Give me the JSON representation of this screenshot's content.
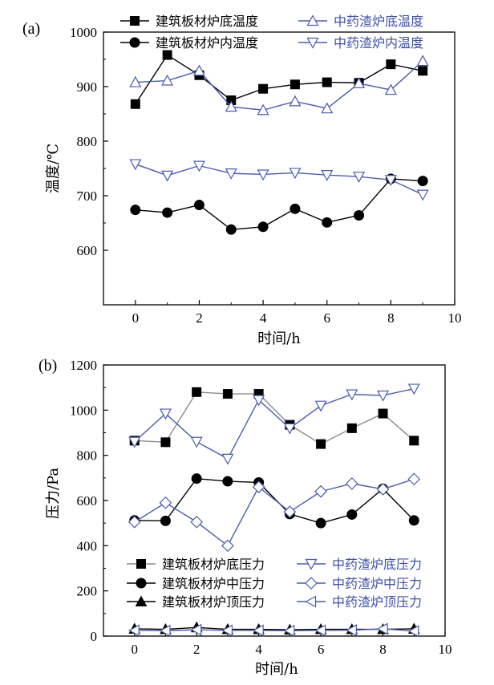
{
  "chart_data": [
    {
      "type": "line",
      "panel_label": "(a)",
      "xlabel": "时间/h",
      "ylabel": "温度/℃",
      "xlim": [
        -1,
        10
      ],
      "ylim": [
        500,
        1000
      ],
      "xticks": [
        0,
        2,
        4,
        6,
        8,
        10
      ],
      "yticks": [
        600,
        700,
        800,
        900,
        1000
      ],
      "legend_position": "top",
      "series": [
        {
          "name": "建筑板材炉底温度",
          "color": "#000000",
          "marker": "square-filled",
          "x": [
            0,
            1,
            2,
            3,
            4,
            5,
            6,
            7,
            8,
            9
          ],
          "y": [
            868,
            958,
            921,
            875,
            896,
            904,
            908,
            907,
            941,
            929
          ]
        },
        {
          "name": "建筑板材炉内温度",
          "color": "#000000",
          "marker": "circle-filled",
          "x": [
            0,
            1,
            2,
            3,
            4,
            5,
            6,
            7,
            8,
            9
          ],
          "y": [
            674,
            669,
            683,
            638,
            643,
            676,
            651,
            664,
            731,
            727
          ]
        },
        {
          "name": "中药渣炉底温度",
          "color": "#4a5cb0",
          "marker": "triangle-up-open",
          "x": [
            0,
            1,
            2,
            3,
            4,
            5,
            6,
            7,
            8,
            9
          ],
          "y": [
            908,
            911,
            929,
            863,
            857,
            873,
            860,
            906,
            894,
            947
          ]
        },
        {
          "name": "中药渣炉内温度",
          "color": "#4a5cb0",
          "marker": "triangle-down-open",
          "x": [
            0,
            1,
            2,
            3,
            4,
            5,
            6,
            7,
            8,
            9
          ],
          "y": [
            758,
            737,
            755,
            741,
            739,
            742,
            738,
            735,
            729,
            702
          ]
        }
      ]
    },
    {
      "type": "line",
      "panel_label": "(b)",
      "xlabel": "时间/h",
      "ylabel": "压力/Pa",
      "xlim": [
        -1,
        10
      ],
      "ylim": [
        0,
        1200
      ],
      "xticks": [
        0,
        2,
        4,
        6,
        8,
        10
      ],
      "yticks": [
        0,
        200,
        400,
        600,
        800,
        1000,
        1200
      ],
      "legend_position": "bottom",
      "series": [
        {
          "name": "建筑板材炉底压力",
          "color": "#000000",
          "line_color": "#8a8a8a",
          "marker": "square-filled",
          "x": [
            0,
            1,
            2,
            3,
            4,
            5,
            6,
            7,
            8,
            9
          ],
          "y": [
            865,
            858,
            1080,
            1072,
            1072,
            935,
            850,
            920,
            985,
            865
          ]
        },
        {
          "name": "中药渣炉底压力",
          "color": "#4a5cb0",
          "line_color": "#4a5cb0",
          "marker": "triangle-down-open",
          "x": [
            0,
            1,
            2,
            3,
            4,
            5,
            6,
            7,
            8,
            9
          ],
          "y": [
            860,
            985,
            860,
            785,
            1045,
            920,
            1020,
            1070,
            1065,
            1095
          ]
        },
        {
          "name": "建筑板材炉中压力",
          "color": "#000000",
          "line_color": "#000000",
          "marker": "circle-filled",
          "x": [
            0,
            1,
            2,
            3,
            4,
            5,
            6,
            7,
            8,
            9
          ],
          "y": [
            512,
            510,
            697,
            685,
            680,
            540,
            500,
            538,
            652,
            512
          ]
        },
        {
          "name": "中药渣炉中压力",
          "color": "#4a5cb0",
          "line_color": "#4a5cb0",
          "marker": "diamond-open",
          "x": [
            0,
            1,
            2,
            3,
            4,
            5,
            6,
            7,
            8,
            9
          ],
          "y": [
            505,
            590,
            505,
            400,
            660,
            550,
            640,
            675,
            650,
            695
          ]
        },
        {
          "name": "建筑板材炉顶压力",
          "color": "#000000",
          "line_color": "#000000",
          "marker": "triangle-up-filled",
          "x": [
            0,
            1,
            2,
            3,
            4,
            5,
            6,
            7,
            8,
            9
          ],
          "y": [
            32,
            30,
            38,
            30,
            30,
            28,
            30,
            30,
            30,
            32
          ]
        },
        {
          "name": "中药渣炉顶压力",
          "color": "#4a5cb0",
          "line_color": "#4a5cb0",
          "marker": "triangle-left-open",
          "x": [
            0,
            1,
            2,
            3,
            4,
            5,
            6,
            7,
            8,
            9
          ],
          "y": [
            25,
            24,
            28,
            25,
            25,
            24,
            25,
            26,
            32,
            22
          ]
        }
      ]
    }
  ]
}
